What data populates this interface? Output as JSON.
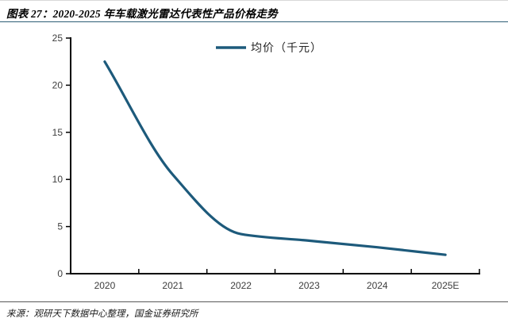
{
  "figure": {
    "title": "图表 27：2020-2025 年车载激光雷达代表性产品价格走势",
    "source": "来源：观研天下数据中心整理，国金证券研究所"
  },
  "colors": {
    "line": "#1d5a7b",
    "axis": "#000000",
    "tick_label": "#3d3d3d",
    "title_rule": "#2e5f76",
    "source_rule": "#595959"
  },
  "chart_data": {
    "type": "line",
    "title": "",
    "xlabel": "",
    "ylabel": "",
    "categories": [
      "2020",
      "2021",
      "2022",
      "2023",
      "2024",
      "2025E"
    ],
    "series": [
      {
        "name": "均价（千元）",
        "values": [
          22.5,
          10.5,
          4.2,
          3.5,
          2.8,
          2.0
        ]
      }
    ],
    "ylim": [
      0,
      25
    ],
    "yticks": [
      0,
      5,
      10,
      15,
      20,
      25
    ],
    "grid": false,
    "legend_position": "top-center",
    "line_color": "#1d5a7b"
  }
}
